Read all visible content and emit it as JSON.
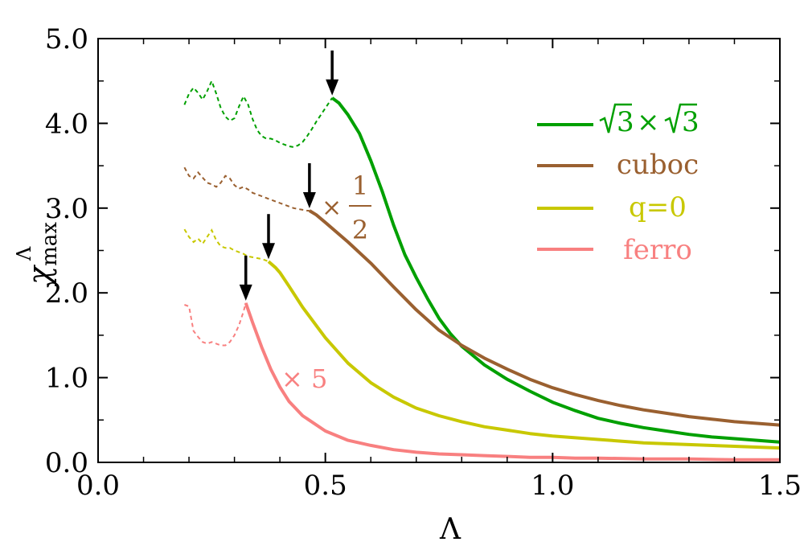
{
  "chart_data": {
    "type": "line",
    "title": "",
    "xlabel": "Λ",
    "ylabel": {
      "base": "χ",
      "sub": "max",
      "sup": "Λ"
    },
    "xlim": [
      0.0,
      1.5
    ],
    "ylim": [
      0.0,
      5.0
    ],
    "xticks": [
      "0.0",
      "0.5",
      "1.0",
      "1.5"
    ],
    "yticks": [
      "0.0",
      "1.0",
      "2.0",
      "3.0",
      "4.0",
      "5.0"
    ],
    "legend_position": "top-right",
    "series": [
      {
        "name": "sqrt3",
        "legend": {
          "r1": "3",
          "times": "×",
          "r2": "3"
        },
        "color": "#00a000",
        "dashed_x": [
          0.19,
          0.2,
          0.21,
          0.22,
          0.23,
          0.24,
          0.25,
          0.26,
          0.27,
          0.28,
          0.29,
          0.3,
          0.31,
          0.32,
          0.33,
          0.34,
          0.35,
          0.36,
          0.37,
          0.38,
          0.39,
          0.4,
          0.41,
          0.42,
          0.43,
          0.44,
          0.45,
          0.46,
          0.47,
          0.48,
          0.49,
          0.5,
          0.51,
          0.515
        ],
        "dashed_y": [
          4.22,
          4.35,
          4.42,
          4.36,
          4.28,
          4.38,
          4.5,
          4.35,
          4.18,
          4.08,
          4.03,
          4.06,
          4.2,
          4.32,
          4.22,
          4.05,
          3.92,
          3.85,
          3.82,
          3.82,
          3.8,
          3.77,
          3.75,
          3.73,
          3.72,
          3.74,
          3.78,
          3.85,
          3.93,
          4.02,
          4.1,
          4.18,
          4.26,
          4.3
        ],
        "solid_x": [
          0.515,
          0.53,
          0.55,
          0.575,
          0.6,
          0.625,
          0.65,
          0.675,
          0.7,
          0.725,
          0.75,
          0.775,
          0.8,
          0.85,
          0.9,
          0.95,
          1.0,
          1.05,
          1.1,
          1.15,
          1.2,
          1.25,
          1.3,
          1.35,
          1.4,
          1.45,
          1.5
        ],
        "solid_y": [
          4.3,
          4.24,
          4.1,
          3.88,
          3.56,
          3.2,
          2.8,
          2.45,
          2.18,
          1.93,
          1.7,
          1.52,
          1.37,
          1.15,
          0.98,
          0.84,
          0.71,
          0.61,
          0.52,
          0.46,
          0.41,
          0.37,
          0.33,
          0.3,
          0.28,
          0.26,
          0.24
        ]
      },
      {
        "name": "cuboc",
        "legend": {
          "text": "cuboc"
        },
        "color": "#9a6030",
        "dashed_x": [
          0.19,
          0.2,
          0.21,
          0.22,
          0.23,
          0.24,
          0.25,
          0.26,
          0.27,
          0.28,
          0.29,
          0.3,
          0.31,
          0.32,
          0.33,
          0.34,
          0.35,
          0.36,
          0.37,
          0.38,
          0.39,
          0.4,
          0.41,
          0.42,
          0.43,
          0.44,
          0.45,
          0.46,
          0.465
        ],
        "dashed_y": [
          3.48,
          3.38,
          3.35,
          3.42,
          3.36,
          3.3,
          3.28,
          3.25,
          3.3,
          3.38,
          3.35,
          3.27,
          3.23,
          3.25,
          3.22,
          3.18,
          3.16,
          3.14,
          3.12,
          3.1,
          3.08,
          3.06,
          3.04,
          3.02,
          3.0,
          2.99,
          2.98,
          2.97,
          2.97
        ],
        "solid_x": [
          0.465,
          0.48,
          0.5,
          0.55,
          0.6,
          0.65,
          0.7,
          0.75,
          0.8,
          0.85,
          0.9,
          0.95,
          1.0,
          1.05,
          1.1,
          1.15,
          1.2,
          1.25,
          1.3,
          1.35,
          1.4,
          1.45,
          1.5
        ],
        "solid_y": [
          2.97,
          2.92,
          2.83,
          2.6,
          2.35,
          2.07,
          1.8,
          1.56,
          1.38,
          1.23,
          1.1,
          0.98,
          0.88,
          0.8,
          0.73,
          0.67,
          0.62,
          0.58,
          0.54,
          0.51,
          0.48,
          0.46,
          0.44
        ]
      },
      {
        "name": "q0",
        "legend": {
          "text": "q=0"
        },
        "color": "#c8c800",
        "dashed_x": [
          0.19,
          0.2,
          0.21,
          0.22,
          0.23,
          0.24,
          0.25,
          0.26,
          0.27,
          0.28,
          0.29,
          0.3,
          0.31,
          0.32,
          0.33,
          0.34,
          0.35,
          0.36,
          0.37,
          0.375
        ],
        "dashed_y": [
          2.75,
          2.66,
          2.6,
          2.64,
          2.58,
          2.66,
          2.74,
          2.62,
          2.55,
          2.53,
          2.53,
          2.5,
          2.48,
          2.46,
          2.43,
          2.42,
          2.41,
          2.4,
          2.38,
          2.37
        ],
        "solid_x": [
          0.375,
          0.39,
          0.4,
          0.42,
          0.45,
          0.5,
          0.55,
          0.6,
          0.65,
          0.7,
          0.75,
          0.8,
          0.85,
          0.9,
          0.95,
          1.0,
          1.05,
          1.1,
          1.15,
          1.2,
          1.3,
          1.4,
          1.5
        ],
        "solid_y": [
          2.37,
          2.3,
          2.24,
          2.08,
          1.83,
          1.47,
          1.17,
          0.94,
          0.77,
          0.64,
          0.55,
          0.48,
          0.42,
          0.38,
          0.34,
          0.31,
          0.29,
          0.27,
          0.25,
          0.23,
          0.21,
          0.19,
          0.17
        ]
      },
      {
        "name": "ferro",
        "legend": {
          "text": "ferro"
        },
        "color": "#f88080",
        "dashed_x": [
          0.19,
          0.2,
          0.21,
          0.22,
          0.23,
          0.24,
          0.25,
          0.26,
          0.27,
          0.28,
          0.29,
          0.3,
          0.31,
          0.32,
          0.325
        ],
        "dashed_y": [
          1.86,
          1.84,
          1.55,
          1.48,
          1.42,
          1.4,
          1.42,
          1.4,
          1.38,
          1.38,
          1.42,
          1.5,
          1.62,
          1.78,
          1.88
        ],
        "solid_x": [
          0.325,
          0.34,
          0.36,
          0.38,
          0.4,
          0.42,
          0.45,
          0.5,
          0.55,
          0.6,
          0.65,
          0.7,
          0.75,
          0.8,
          0.85,
          0.9,
          0.95,
          1.0,
          1.05,
          1.1,
          1.2,
          1.3,
          1.4,
          1.5
        ],
        "solid_y": [
          1.88,
          1.65,
          1.36,
          1.1,
          0.89,
          0.72,
          0.55,
          0.37,
          0.26,
          0.2,
          0.15,
          0.12,
          0.1,
          0.09,
          0.08,
          0.07,
          0.06,
          0.06,
          0.05,
          0.05,
          0.04,
          0.04,
          0.03,
          0.03
        ]
      }
    ],
    "arrows": [
      {
        "name": "sqrt3",
        "x": 0.515,
        "y": 4.3
      },
      {
        "name": "cuboc",
        "x": 0.465,
        "y": 2.97
      },
      {
        "name": "q0",
        "x": 0.375,
        "y": 2.37
      },
      {
        "name": "ferro",
        "x": 0.325,
        "y": 1.88
      }
    ],
    "annotations": {
      "cuboc": {
        "times": "×",
        "num": "1",
        "den": "2",
        "color": "#9a6030"
      },
      "ferro": {
        "text": "× 5",
        "color": "#f88080"
      }
    }
  }
}
